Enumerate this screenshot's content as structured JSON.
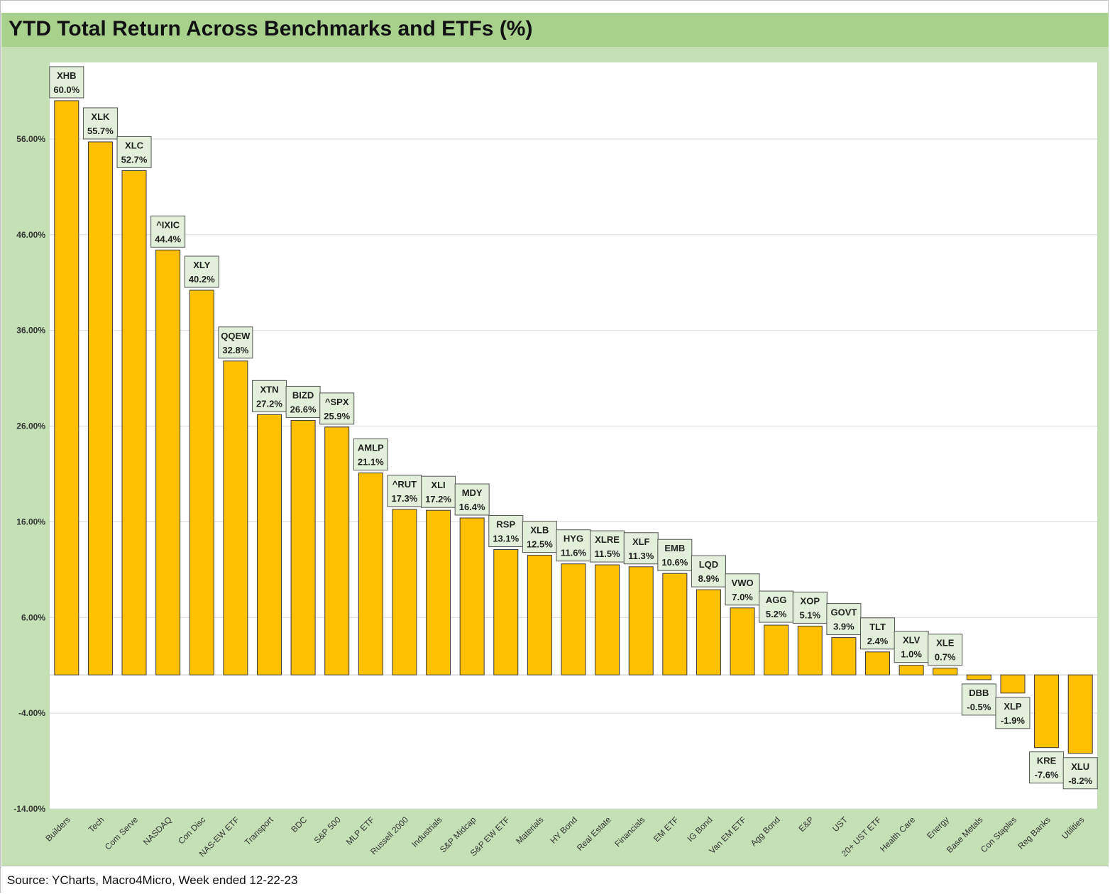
{
  "title": "YTD Total Return Across Benchmarks and ETFs (%)",
  "source": "Source: YCharts, Macro4Micro, Week ended 12-22-23",
  "colors": {
    "bar": "#ffc000",
    "bar_outline": "#3a3a3a",
    "header": "#a9d18e",
    "panel": "#c5e0b4",
    "label_box": "#e2efda"
  },
  "chart_data": {
    "type": "bar",
    "title": "YTD Total Return Across Benchmarks and ETFs (%)",
    "xlabel": "",
    "ylabel": "",
    "ylim": [
      -14,
      64
    ],
    "yticks": [
      56,
      46,
      36,
      26,
      16,
      6,
      -4,
      -14
    ],
    "ytick_labels": [
      "56.00%",
      "46.00%",
      "36.00%",
      "26.00%",
      "16.00%",
      "6.00%",
      "-4.00%",
      "-14.00%"
    ],
    "grid": true,
    "categories": [
      "Builders",
      "Tech",
      "Com Serve",
      "NASDAQ",
      "Con Disc",
      "NAS-EW ETF",
      "Transport",
      "BDC",
      "S&P 500",
      "MLP ETF",
      "Russell 2000",
      "Industrials",
      "S&P Midcap",
      "S&P EW ETF",
      "Materials",
      "HY Bond",
      "Real Estate",
      "Financials",
      "EM ETF",
      "IG Bond",
      "Van EM ETF",
      "Agg Bond",
      "E&P",
      "UST",
      "20+ UST ETF",
      "Health Care",
      "Energy",
      "Base Metals",
      "Con Staples",
      "Reg Banks",
      "Utilities"
    ],
    "tickers": [
      "XHB",
      "XLK",
      "XLC",
      "^IXIC",
      "XLY",
      "QQEW",
      "XTN",
      "BIZD",
      "^SPX",
      "AMLP",
      "^RUT",
      "XLI",
      "MDY",
      "RSP",
      "XLB",
      "HYG",
      "XLRE",
      "XLF",
      "EMB",
      "LQD",
      "VWO",
      "AGG",
      "XOP",
      "GOVT",
      "TLT",
      "XLV",
      "XLE",
      "DBB",
      "XLP",
      "KRE",
      "XLU"
    ],
    "values": [
      60.0,
      55.7,
      52.7,
      44.4,
      40.2,
      32.8,
      27.2,
      26.6,
      25.9,
      21.1,
      17.3,
      17.2,
      16.4,
      13.1,
      12.5,
      11.6,
      11.5,
      11.3,
      10.6,
      8.9,
      7.0,
      5.2,
      5.1,
      3.9,
      2.4,
      1.0,
      0.7,
      -0.5,
      -1.9,
      -7.6,
      -8.2
    ],
    "value_labels": [
      "60.0%",
      "55.7%",
      "52.7%",
      "44.4%",
      "40.2%",
      "32.8%",
      "27.2%",
      "26.6%",
      "25.9%",
      "21.1%",
      "17.3%",
      "17.2%",
      "16.4%",
      "13.1%",
      "12.5%",
      "11.6%",
      "11.5%",
      "11.3%",
      "10.6%",
      "8.9%",
      "7.0%",
      "5.2%",
      "5.1%",
      "3.9%",
      "2.4%",
      "1.0%",
      "0.7%",
      "-0.5%",
      "-1.9%",
      "-7.6%",
      "-8.2%"
    ]
  }
}
